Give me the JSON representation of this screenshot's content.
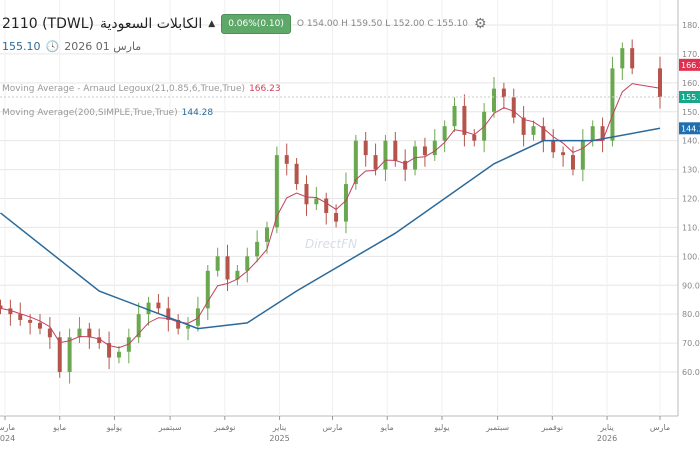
{
  "header": {
    "symbol": "2110 (TDWL)",
    "name": "الكابلات السعودية",
    "arrow": "▲",
    "change": "0.06%(0.10)",
    "ohlc": "O 154.00  H 159.50  L 152.00  C 155.10",
    "settings_icon": "gear-icon"
  },
  "subheader": {
    "price": "155.10",
    "clock_icon": "clock-icon",
    "date": "مارس 01 2026"
  },
  "legend": [
    {
      "label": "Moving Average - Arnaud Legoux(21,0.85,6,True,True)",
      "value": "166.23",
      "color": "#d2405a"
    },
    {
      "label": "Moving Average(200,SIMPLE,True,True)",
      "value": "144.28",
      "color": "#2a6a9a"
    }
  ],
  "watermark": "DirectFN",
  "chart_data": {
    "type": "candlestick",
    "ylim": [
      55,
      185
    ],
    "y_ticks": [
      "180.00",
      "170.00",
      "160.00",
      "150.00",
      "140.00",
      "130.00",
      "120.00",
      "110.00",
      "100.00",
      "90.00",
      "80.00",
      "70.00",
      "60.00"
    ],
    "y_tick_values": [
      180,
      170,
      160,
      150,
      140,
      130,
      120,
      110,
      100,
      90,
      80,
      70,
      60
    ],
    "x_ticks": [
      {
        "label": "مارس",
        "sub": "2024",
        "date": "2024-03-01"
      },
      {
        "label": "مايو",
        "date": "2024-05-01"
      },
      {
        "label": "يوليو",
        "date": "2024-07-01"
      },
      {
        "label": "سبتمبر",
        "date": "2024-09-01"
      },
      {
        "label": "نوفمبر",
        "date": "2024-11-01"
      },
      {
        "label": "يناير",
        "sub": "2025",
        "date": "2025-01-01"
      },
      {
        "label": "مارس",
        "date": "2025-03-01"
      },
      {
        "label": "مايو",
        "date": "2025-05-01"
      },
      {
        "label": "يوليو",
        "date": "2025-07-01"
      },
      {
        "label": "سبتمبر",
        "date": "2025-09-01"
      },
      {
        "label": "نوفمبر",
        "date": "2025-11-01"
      },
      {
        "label": "يناير",
        "sub": "2026",
        "date": "2026-01-01"
      },
      {
        "label": "مارس",
        "date": "2026-03-01"
      }
    ],
    "x_range": [
      "2024-03-01",
      "2026-03-01"
    ],
    "dates": [
      "2024-02-25",
      "2024-03-07",
      "2024-03-18",
      "2024-03-29",
      "2024-04-09",
      "2024-04-20",
      "2024-05-01",
      "2024-05-12",
      "2024-05-23",
      "2024-06-03",
      "2024-06-14",
      "2024-06-25",
      "2024-07-06",
      "2024-07-17",
      "2024-07-28",
      "2024-08-08",
      "2024-08-19",
      "2024-08-30",
      "2024-09-10",
      "2024-09-21",
      "2024-10-02",
      "2024-10-13",
      "2024-10-24",
      "2024-11-04",
      "2024-11-15",
      "2024-11-26",
      "2024-12-07",
      "2024-12-18",
      "2024-12-29",
      "2025-01-09",
      "2025-01-20",
      "2025-01-31",
      "2025-02-11",
      "2025-02-22",
      "2025-03-05",
      "2025-03-16",
      "2025-03-27",
      "2025-04-07",
      "2025-04-18",
      "2025-04-29",
      "2025-05-10",
      "2025-05-21",
      "2025-06-01",
      "2025-06-12",
      "2025-06-23",
      "2025-07-04",
      "2025-07-15",
      "2025-07-26",
      "2025-08-06",
      "2025-08-17",
      "2025-08-28",
      "2025-09-08",
      "2025-09-19",
      "2025-09-30",
      "2025-10-11",
      "2025-10-22",
      "2025-11-02",
      "2025-11-13",
      "2025-11-24",
      "2025-12-05",
      "2025-12-16",
      "2025-12-27",
      "2026-01-07",
      "2026-01-18",
      "2026-01-29",
      "2026-03-01"
    ],
    "close": [
      82,
      80,
      78,
      77,
      75,
      72,
      60,
      72,
      75,
      72,
      70,
      65,
      67,
      72,
      80,
      84,
      82,
      78,
      75,
      76,
      82,
      95,
      100,
      92,
      95,
      100,
      105,
      110,
      135,
      132,
      125,
      118,
      120,
      115,
      112,
      125,
      140,
      135,
      130,
      140,
      133,
      130,
      138,
      135,
      140,
      145,
      152,
      142,
      140,
      150,
      158,
      155,
      148,
      142,
      145,
      140,
      136,
      135,
      130,
      140,
      145,
      140,
      165,
      172,
      165,
      155.1
    ],
    "ma200": {
      "dates": [
        "2024-02-25",
        "2024-06-14",
        "2024-10-02",
        "2024-11-26",
        "2025-01-20",
        "2025-05-10",
        "2025-08-28",
        "2025-10-22",
        "2025-12-16",
        "2026-03-01"
      ],
      "values": [
        115,
        88,
        75,
        77,
        88,
        108,
        132,
        140,
        140,
        144.28
      ]
    },
    "last_values": [
      {
        "value": "166.23",
        "color": "#e0304f"
      },
      {
        "value": "155.10",
        "color": "#1aa68a"
      },
      {
        "value": "144.28",
        "color": "#1f6fb0"
      }
    ],
    "up_color": "#6aa84f",
    "down_color": "#b5544a",
    "alma_color": "#c2415c",
    "sma_color": "#2a6a9a",
    "grid": true
  }
}
